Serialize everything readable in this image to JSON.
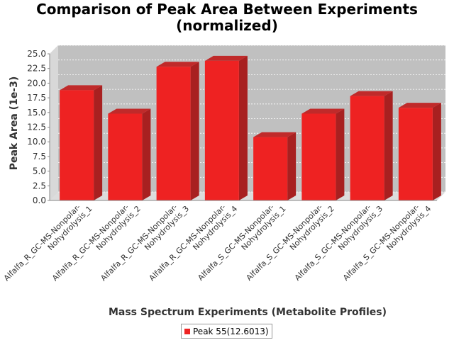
{
  "chart_data": {
    "type": "bar",
    "title_lines": [
      "Comparison of Peak Area Between Experiments",
      "(normalized)"
    ],
    "xlabel": "Mass Spectrum Experiments (Metabolite Profiles)",
    "ylabel": "Peak Area (1e-3)",
    "ylim": [
      0,
      25
    ],
    "yticks": [
      "0.0",
      "2.5",
      "5.0",
      "7.5",
      "10.0",
      "12.5",
      "15.0",
      "17.5",
      "20.0",
      "22.5",
      "25.0"
    ],
    "grid": true,
    "legend_position": "bottom",
    "categories": [
      [
        "Alfalfa_R_GC-MS-Nonpolar-",
        "Nohydrolysis_1"
      ],
      [
        "Alfalfa_R_GC-MS-Nonpolar-",
        "Nohydrolysis_2"
      ],
      [
        "Alfalfa_R_GC-MS-Nonpolar-",
        "Nohydrolysis_3"
      ],
      [
        "Alfalfa_R_GC-MS-Nonpolar-",
        "Nohydrolysis_4"
      ],
      [
        "Alfalfa_S_GC-MS-Nonpolar-",
        "Nohydrolysis_1"
      ],
      [
        "Alfalfa_S_GC-MS-Nonpolar-",
        "Nohydrolysis_2"
      ],
      [
        "Alfalfa_S_GC-MS-Nonpolar-",
        "Nohydrolysis_3"
      ],
      [
        "Alfalfa_S_GC-MS-Nonpolar-",
        "Nohydrolysis_4"
      ]
    ],
    "series": [
      {
        "name": "Peak 55(12.6013)",
        "color": "#ee2222",
        "values": [
          18.8,
          14.8,
          22.8,
          23.8,
          10.8,
          14.8,
          17.8,
          15.8
        ]
      }
    ]
  }
}
